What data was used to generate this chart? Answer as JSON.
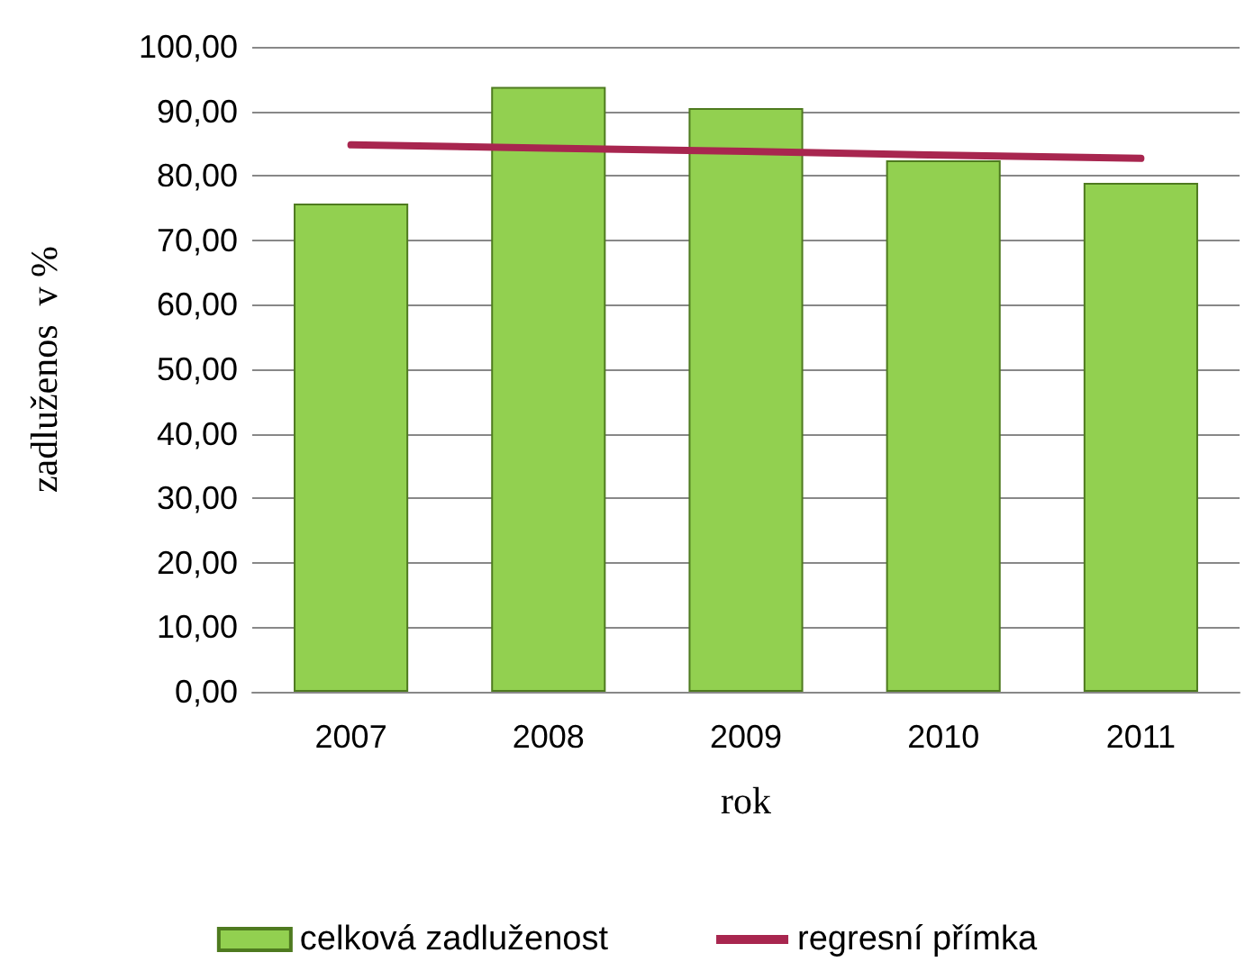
{
  "chart_data": {
    "type": "bar",
    "xlabel": "rok",
    "ylabel": "zadluženos  v %",
    "categories": [
      "2007",
      "2008",
      "2009",
      "2010",
      "2011"
    ],
    "series": [
      {
        "name": "celková zadluženost",
        "color": "#92d050",
        "values": [
          75.7,
          93.8,
          90.5,
          82.4,
          78.9
        ]
      },
      {
        "name": "regresní přímka",
        "type": "line",
        "color": "#a8264f",
        "values": [
          84.8,
          84.3,
          83.8,
          83.2,
          82.7
        ]
      }
    ],
    "ylim": [
      0,
      100
    ],
    "yticks": [
      {
        "value": 0,
        "label": "0,00"
      },
      {
        "value": 10,
        "label": "10,00"
      },
      {
        "value": 20,
        "label": "20,00"
      },
      {
        "value": 30,
        "label": "30,00"
      },
      {
        "value": 40,
        "label": "40,00"
      },
      {
        "value": 50,
        "label": "50,00"
      },
      {
        "value": 60,
        "label": "60,00"
      },
      {
        "value": 70,
        "label": "70,00"
      },
      {
        "value": 80,
        "label": "80,00"
      },
      {
        "value": 90,
        "label": "90,00"
      },
      {
        "value": 100,
        "label": "100,00"
      }
    ],
    "grid": "y",
    "legend": "bottom",
    "marker": "none"
  }
}
